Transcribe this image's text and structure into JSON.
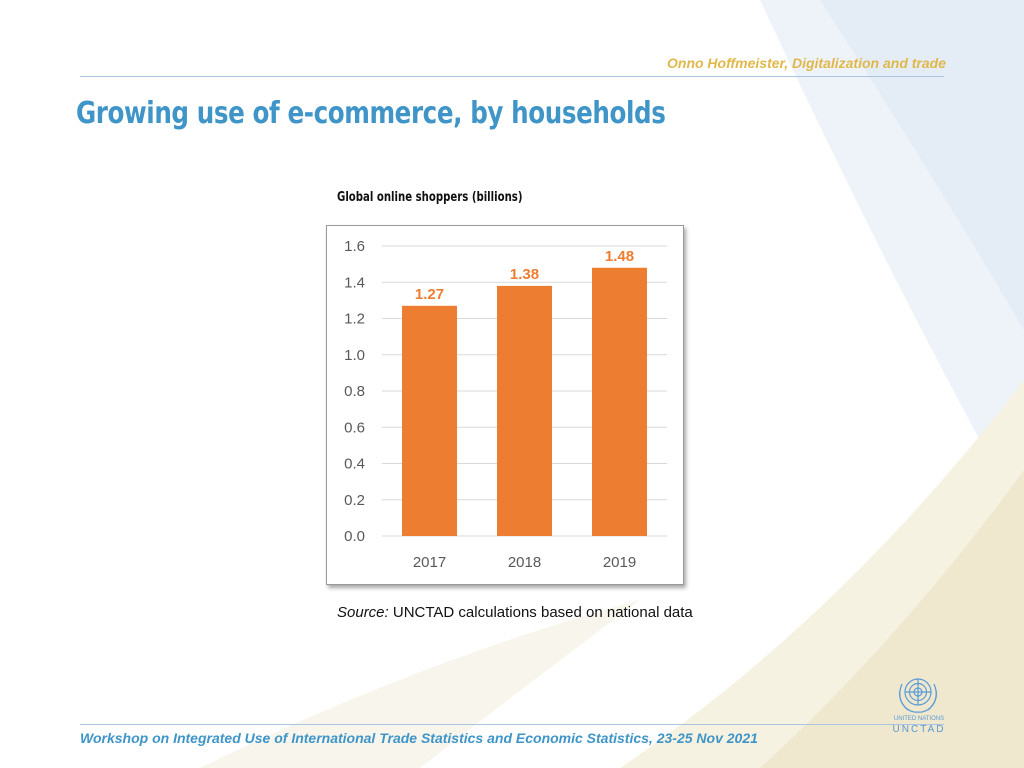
{
  "header": {
    "author_line": "Onno Hoffmeister, Digitalization and trade"
  },
  "slide": {
    "title": "Growing use of e-commerce, by households"
  },
  "chart_caption": "Global online shoppers (billions)",
  "chart_data": {
    "type": "bar",
    "title": "Global online shoppers (billions)",
    "categories": [
      "2017",
      "2018",
      "2019"
    ],
    "values": [
      1.27,
      1.38,
      1.48
    ],
    "data_labels": [
      "1.27",
      "1.38",
      "1.48"
    ],
    "ylim": [
      0,
      1.6
    ],
    "yticks": [
      "0.0",
      "0.2",
      "0.4",
      "0.6",
      "0.8",
      "1.0",
      "1.2",
      "1.4",
      "1.6"
    ],
    "grid": true,
    "bar_color": "#ed7d31",
    "label_color": "#ed7d31"
  },
  "source": {
    "label": "Source:",
    "text": "UNCTAD calculations based on national data"
  },
  "footer": {
    "text": "Workshop on Integrated Use of International Trade Statistics and Economic Statistics, 23-25 Nov 2021"
  },
  "logo": {
    "icon": "un-emblem-icon",
    "line1": "UNITED NATIONS",
    "line2": "UNCTAD",
    "color": "#5b9bd5"
  },
  "colors": {
    "title": "#3f95c8",
    "author": "#e0b84a",
    "rule": "#a9c4e0"
  }
}
